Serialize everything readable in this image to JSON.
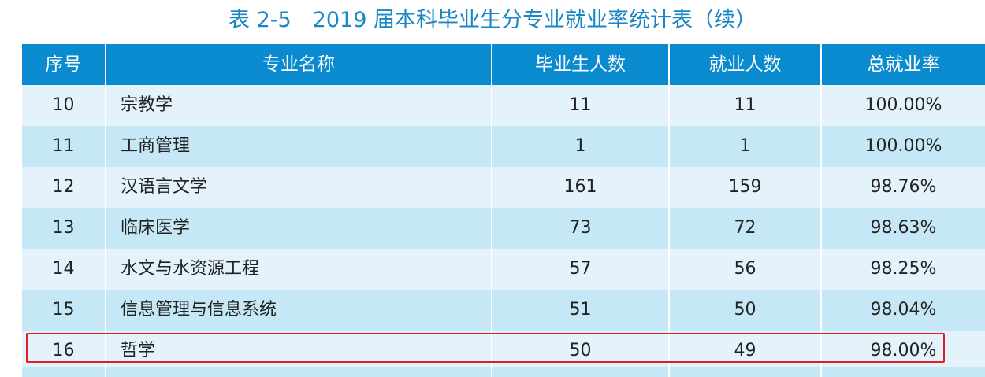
{
  "title": "表 2-5　2019 届本科毕业生分专业就业率统计表（续）",
  "headers": {
    "index": "序号",
    "major": "专业名称",
    "graduates": "毕业生人数",
    "employed": "就业人数",
    "rate": "总就业率"
  },
  "rows": [
    {
      "index": "10",
      "major": "宗教学",
      "graduates": "11",
      "employed": "11",
      "rate": "100.00%"
    },
    {
      "index": "11",
      "major": "工商管理",
      "graduates": "1",
      "employed": "1",
      "rate": "100.00%"
    },
    {
      "index": "12",
      "major": "汉语言文学",
      "graduates": "161",
      "employed": "159",
      "rate": "98.76%"
    },
    {
      "index": "13",
      "major": "临床医学",
      "graduates": "73",
      "employed": "72",
      "rate": "98.63%"
    },
    {
      "index": "14",
      "major": "水文与水资源工程",
      "graduates": "57",
      "employed": "56",
      "rate": "98.25%"
    },
    {
      "index": "15",
      "major": "信息管理与信息系统",
      "graduates": "51",
      "employed": "50",
      "rate": "98.04%"
    },
    {
      "index": "16",
      "major": "哲学",
      "graduates": "50",
      "employed": "49",
      "rate": "98.00%"
    }
  ],
  "colors": {
    "header_bg": "#0b8bcf",
    "row_light": "#e4f3fb",
    "row_dark": "#c6e8f6",
    "title": "#1a86c4",
    "highlight": "#e02020"
  }
}
